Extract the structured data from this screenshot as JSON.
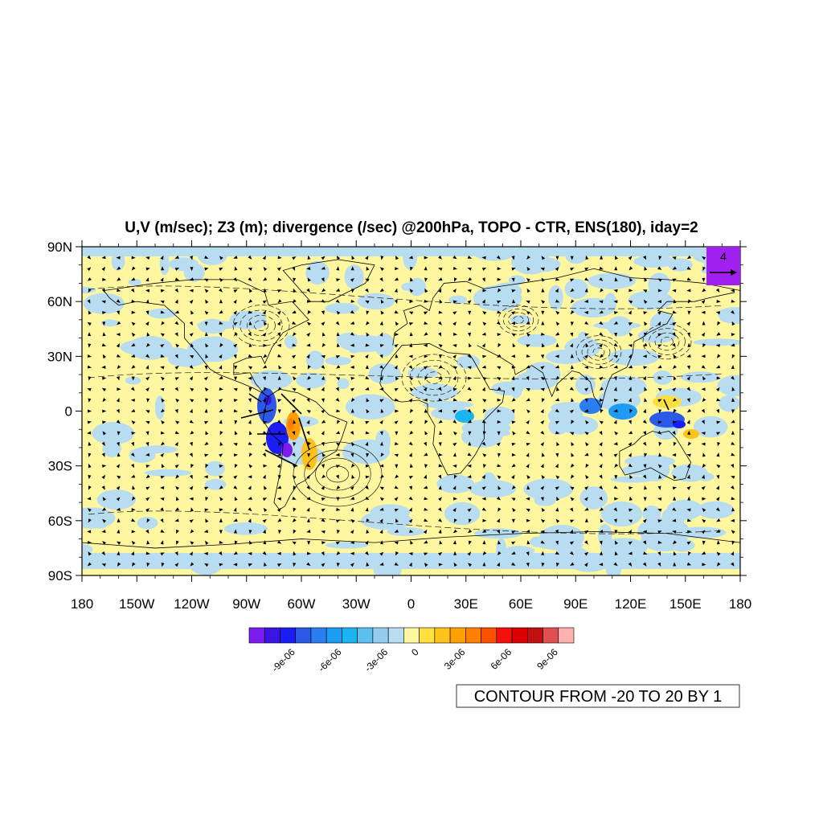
{
  "title": "U,V (m/sec); Z3 (m); divergence (/sec) @200hPa, TOPO - CTR, ENS(180), iday=2",
  "map": {
    "lon_range": [
      -180,
      180
    ],
    "lat_range": [
      -90,
      90
    ],
    "lat_ticks": [
      {
        "value": 90,
        "label": "90N"
      },
      {
        "value": 60,
        "label": "60N"
      },
      {
        "value": 30,
        "label": "30N"
      },
      {
        "value": 0,
        "label": "0"
      },
      {
        "value": -30,
        "label": "30S"
      },
      {
        "value": -60,
        "label": "60S"
      },
      {
        "value": -90,
        "label": "90S"
      }
    ],
    "lon_ticks": [
      {
        "value": -180,
        "label": "180"
      },
      {
        "value": -150,
        "label": "150W"
      },
      {
        "value": -120,
        "label": "120W"
      },
      {
        "value": -90,
        "label": "90W"
      },
      {
        "value": -60,
        "label": "60W"
      },
      {
        "value": -30,
        "label": "30W"
      },
      {
        "value": 0,
        "label": "0"
      },
      {
        "value": 30,
        "label": "30E"
      },
      {
        "value": 60,
        "label": "60E"
      },
      {
        "value": 90,
        "label": "90E"
      },
      {
        "value": 120,
        "label": "120E"
      },
      {
        "value": 150,
        "label": "150E"
      },
      {
        "value": 180,
        "label": "180"
      }
    ]
  },
  "reference_vector": {
    "label": "4",
    "box_color": "#a020f0"
  },
  "colorbar": {
    "colors": [
      "#7d1cf0",
      "#3a14e0",
      "#1c1cf5",
      "#2c5ae8",
      "#2a7ef2",
      "#1e9bf3",
      "#1cb4f0",
      "#5cc0ee",
      "#96cdee",
      "#b8dcf0",
      "#fff7a0",
      "#ffe040",
      "#ffc21a",
      "#ffa000",
      "#ff8000",
      "#ff5000",
      "#f51010",
      "#dc0000",
      "#c01010",
      "#e05050",
      "#ffb0b0"
    ],
    "labels": [
      {
        "after_index": 2,
        "text": "-9e-06"
      },
      {
        "after_index": 5,
        "text": "-6e-06"
      },
      {
        "after_index": 8,
        "text": "-3e-06"
      },
      {
        "after_index": 10,
        "text": "0"
      },
      {
        "after_index": 13,
        "text": "3e-06"
      },
      {
        "after_index": 16,
        "text": "6e-06"
      },
      {
        "after_index": 19,
        "text": "9e-06"
      }
    ]
  },
  "contour_info": "CONTOUR FROM -20 TO 20 BY 1",
  "colors": {
    "positive_fill": "#fff7a0",
    "negative_fill": "#b8dcf0"
  }
}
